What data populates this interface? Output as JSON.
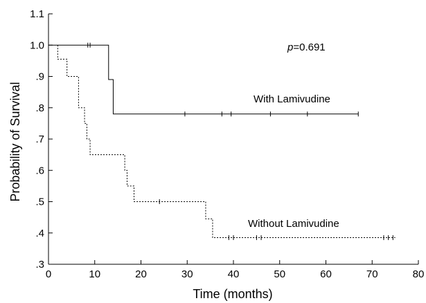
{
  "chart_data": {
    "type": "line",
    "title": "",
    "xlabel": "Time (months)",
    "ylabel": "Probability of Survival",
    "xlim": [
      0,
      80
    ],
    "ylim": [
      0.3,
      1.1
    ],
    "x_ticks": [
      0,
      10,
      20,
      30,
      40,
      50,
      60,
      70,
      80
    ],
    "x_tick_labels": [
      "0",
      "10",
      "20",
      "30",
      "40",
      "50",
      "60",
      "70",
      "80"
    ],
    "y_ticks": [
      0.3,
      0.4,
      0.5,
      0.6,
      0.7,
      0.8,
      0.9,
      1.0,
      1.1
    ],
    "y_tick_labels": [
      ".3",
      ".4",
      ".5",
      ".6",
      ".7",
      ".8",
      ".9",
      "1.0",
      "1.1"
    ],
    "grid": false,
    "legend": "none",
    "annotation_p": {
      "italic": "p",
      "rest": "=0.691"
    },
    "series": [
      {
        "name": "With Lamivudine",
        "line_style": "solid",
        "color": "#000000",
        "steps": [
          [
            0,
            1.0
          ],
          [
            13,
            1.0
          ],
          [
            13,
            0.89
          ],
          [
            14,
            0.89
          ],
          [
            14,
            0.78
          ],
          [
            67,
            0.78
          ]
        ],
        "censored": [
          [
            8.5,
            1.0
          ],
          [
            9,
            1.0
          ],
          [
            29.5,
            0.78
          ],
          [
            37.5,
            0.78
          ],
          [
            39.5,
            0.78
          ],
          [
            48,
            0.78
          ],
          [
            56,
            0.78
          ],
          [
            67,
            0.78
          ]
        ]
      },
      {
        "name": "Without Lamivudine",
        "line_style": "dashed",
        "color": "#000000",
        "steps": [
          [
            2,
            1.0
          ],
          [
            2,
            0.955
          ],
          [
            4,
            0.955
          ],
          [
            4,
            0.9
          ],
          [
            6.5,
            0.9
          ],
          [
            6.5,
            0.8
          ],
          [
            7.8,
            0.8
          ],
          [
            7.8,
            0.75
          ],
          [
            8.3,
            0.75
          ],
          [
            8.3,
            0.7
          ],
          [
            9,
            0.7
          ],
          [
            9,
            0.65
          ],
          [
            16.5,
            0.65
          ],
          [
            16.5,
            0.6
          ],
          [
            17,
            0.6
          ],
          [
            17,
            0.55
          ],
          [
            18.5,
            0.55
          ],
          [
            18.5,
            0.5
          ],
          [
            34,
            0.5
          ],
          [
            34,
            0.445
          ],
          [
            35.5,
            0.445
          ],
          [
            35.5,
            0.385
          ],
          [
            75,
            0.385
          ]
        ],
        "censored": [
          [
            24,
            0.5
          ],
          [
            39,
            0.385
          ],
          [
            40,
            0.385
          ],
          [
            45,
            0.385
          ],
          [
            46,
            0.385
          ],
          [
            72.5,
            0.385
          ],
          [
            73.5,
            0.385
          ],
          [
            74.5,
            0.385
          ]
        ]
      }
    ]
  }
}
